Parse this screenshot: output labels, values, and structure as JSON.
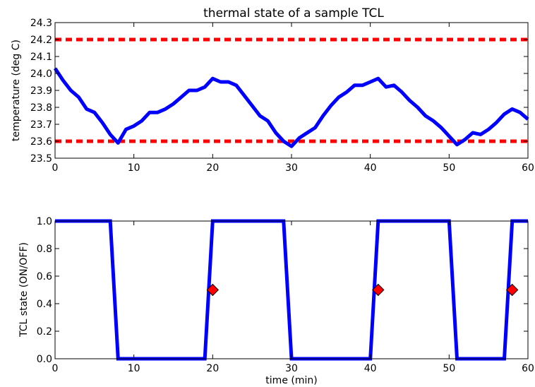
{
  "chart_data": [
    {
      "type": "line",
      "title": "thermal state of a sample TCL",
      "xlabel": "",
      "ylabel": "temperature (deg C)",
      "xlim": [
        0,
        60
      ],
      "ylim": [
        23.5,
        24.3
      ],
      "xticks": [
        "0",
        "10",
        "20",
        "30",
        "40",
        "50",
        "60"
      ],
      "yticks": [
        "23.5",
        "23.6",
        "23.7",
        "23.8",
        "23.9",
        "24.0",
        "24.1",
        "24.2",
        "24.3"
      ],
      "grid": false,
      "line_color": "#0000ff",
      "threshold_color": "#ff0000",
      "thresholds": [
        24.2,
        23.6
      ],
      "series": [
        {
          "x": [
            0,
            1,
            2,
            3,
            4,
            5,
            6,
            7,
            8,
            9,
            10,
            11,
            12,
            13,
            14,
            15,
            16,
            17,
            18,
            19,
            20,
            21,
            22,
            23,
            24,
            25,
            26,
            27,
            28,
            29,
            30,
            31,
            32,
            33,
            34,
            35,
            36,
            37,
            38,
            39,
            40,
            41,
            42,
            43,
            44,
            45,
            46,
            47,
            48,
            49,
            50,
            51,
            52,
            53,
            54,
            55,
            56,
            57,
            58,
            59,
            60
          ],
          "y": [
            24.03,
            23.96,
            23.9,
            23.86,
            23.79,
            23.77,
            23.71,
            23.64,
            23.59,
            23.67,
            23.69,
            23.72,
            23.77,
            23.77,
            23.79,
            23.82,
            23.86,
            23.9,
            23.9,
            23.92,
            23.97,
            23.95,
            23.95,
            23.93,
            23.87,
            23.81,
            23.75,
            23.72,
            23.65,
            23.6,
            23.57,
            23.62,
            23.65,
            23.68,
            23.75,
            23.81,
            23.86,
            23.89,
            23.93,
            23.93,
            23.95,
            23.97,
            23.92,
            23.93,
            23.89,
            23.84,
            23.8,
            23.75,
            23.72,
            23.68,
            23.63,
            23.58,
            23.61,
            23.65,
            23.64,
            23.67,
            23.71,
            23.76,
            23.79,
            23.77,
            23.73
          ]
        }
      ]
    },
    {
      "type": "line",
      "title": "",
      "xlabel": "time (min)",
      "ylabel": "TCL state (ON/OFF)",
      "xlim": [
        0,
        60
      ],
      "ylim": [
        0.0,
        1.0
      ],
      "xticks": [
        "0",
        "10",
        "20",
        "30",
        "40",
        "50",
        "60"
      ],
      "yticks": [
        "0.0",
        "0.2",
        "0.4",
        "0.6",
        "0.8",
        "1.0"
      ],
      "grid": false,
      "line_color": "#0000ff",
      "marker_color": "#ff0000",
      "series": [
        {
          "x": [
            0,
            7,
            8,
            19,
            20,
            29,
            30,
            40,
            41,
            50,
            51,
            57,
            58,
            60
          ],
          "y": [
            1,
            1,
            0,
            0,
            1,
            1,
            0,
            0,
            1,
            1,
            0,
            0,
            1,
            1
          ]
        }
      ],
      "markers": [
        {
          "x": 20,
          "y": 0.5
        },
        {
          "x": 41,
          "y": 0.5
        },
        {
          "x": 58,
          "y": 0.5
        }
      ]
    }
  ]
}
